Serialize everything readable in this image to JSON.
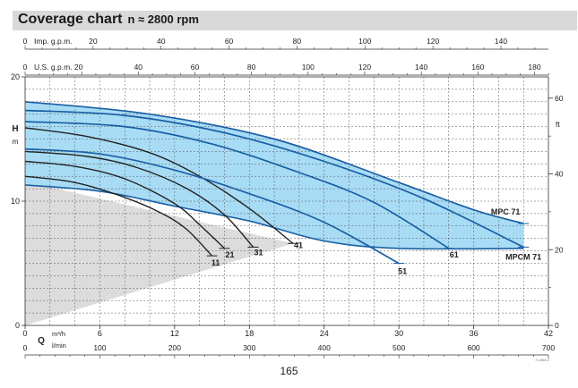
{
  "title": "Coverage chart",
  "subtitle": "n ≈ 2800 rpm",
  "page_number": "165",
  "code": "72-868.2",
  "colors": {
    "coverage_fill": "#a8dcf5",
    "curve": "#1a5fa5",
    "small_curve": "#222222",
    "gray_region": "#dcdcdc",
    "grid": "#555555"
  },
  "chart_data": {
    "type": "line",
    "title": "Coverage chart",
    "subtitle": "n ≈ 2800 rpm",
    "x": {
      "label": "Q",
      "units": [
        "m³/h",
        "l/min"
      ],
      "range": [
        0,
        42
      ],
      "ticks": [
        0,
        6,
        12,
        18,
        24,
        30,
        36,
        42
      ],
      "lmin_ticks": [
        0,
        100,
        200,
        300,
        400,
        500,
        600,
        700
      ]
    },
    "y": {
      "label": "H",
      "unit": "m",
      "range": [
        0,
        20
      ],
      "ticks": [
        0,
        10,
        20
      ],
      "ft_label": "ft",
      "ft_ticks": [
        0,
        20,
        40,
        60
      ]
    },
    "top_axes": [
      {
        "label": "Imp. g.p.m.",
        "ticks": [
          0,
          20,
          40,
          60,
          80,
          100,
          120,
          140
        ]
      },
      {
        "label": "U.S. g.p.m.",
        "ticks": [
          0,
          20,
          40,
          60,
          80,
          100,
          120,
          140,
          160,
          180
        ]
      }
    ],
    "grid": true,
    "shaded_region": {
      "label": "",
      "points": [
        [
          0,
          0
        ],
        [
          0,
          11.6
        ],
        [
          21.5,
          6.6
        ]
      ]
    },
    "coverage_region": {
      "labels": [
        "MPC 71",
        "MPCM 71"
      ],
      "upper": [
        [
          0,
          18.0
        ],
        [
          10,
          17.0
        ],
        [
          20,
          15.0
        ],
        [
          30,
          11.5
        ],
        [
          36,
          9.3
        ],
        [
          40,
          8.2
        ]
      ],
      "lower": [
        [
          0,
          11.3
        ],
        [
          6,
          10.8
        ],
        [
          12,
          9.6
        ],
        [
          18,
          8.4
        ],
        [
          24,
          6.8
        ],
        [
          30,
          6.2
        ],
        [
          40,
          6.2
        ]
      ]
    },
    "series": [
      {
        "name": "11",
        "points": [
          [
            0,
            12.0
          ],
          [
            4,
            11.5
          ],
          [
            8,
            10.3
          ],
          [
            11,
            9.0
          ],
          [
            13,
            7.7
          ],
          [
            15,
            5.6
          ]
        ]
      },
      {
        "name": "21",
        "points": [
          [
            0,
            13.2
          ],
          [
            4,
            12.8
          ],
          [
            8,
            11.8
          ],
          [
            12,
            9.8
          ],
          [
            14,
            8.1
          ],
          [
            16,
            6.2
          ]
        ]
      },
      {
        "name": "31",
        "points": [
          [
            0,
            14.0
          ],
          [
            5,
            13.6
          ],
          [
            9,
            12.7
          ],
          [
            13,
            11.0
          ],
          [
            16,
            8.9
          ],
          [
            18.3,
            6.3
          ]
        ]
      },
      {
        "name": "41",
        "points": [
          [
            0,
            15.9
          ],
          [
            5,
            15.2
          ],
          [
            10,
            13.9
          ],
          [
            14,
            12.0
          ],
          [
            18,
            9.4
          ],
          [
            21.5,
            6.6
          ]
        ]
      },
      {
        "name": "51",
        "points": [
          [
            0,
            14.2
          ],
          [
            6,
            13.8
          ],
          [
            12,
            12.5
          ],
          [
            18,
            10.6
          ],
          [
            24,
            8.3
          ],
          [
            30,
            5.0
          ]
        ]
      },
      {
        "name": "61",
        "points": [
          [
            0,
            16.4
          ],
          [
            8,
            16.0
          ],
          [
            15,
            14.6
          ],
          [
            22,
            12.3
          ],
          [
            28,
            9.9
          ],
          [
            34,
            6.2
          ]
        ]
      },
      {
        "name": "MPC 71",
        "points": [
          [
            0,
            18.0
          ],
          [
            10,
            17.0
          ],
          [
            20,
            15.0
          ],
          [
            30,
            11.5
          ],
          [
            36,
            9.3
          ],
          [
            40,
            8.2
          ]
        ]
      },
      {
        "name": "MPCM 71",
        "points": [
          [
            0,
            17.3
          ],
          [
            8,
            16.9
          ],
          [
            16,
            15.5
          ],
          [
            24,
            13.2
          ],
          [
            32,
            10.2
          ],
          [
            40,
            6.3
          ]
        ]
      }
    ]
  }
}
